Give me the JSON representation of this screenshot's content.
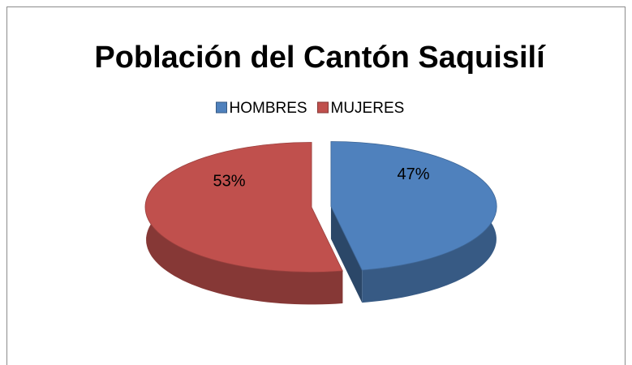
{
  "chart_data": {
    "type": "pie",
    "title": "Población del Cantón Saquisilí",
    "categories": [
      "HOMBRES",
      "MUJERES"
    ],
    "values": [
      47,
      53
    ],
    "value_labels": [
      "47%",
      "53%"
    ],
    "colors": [
      "#4f81bd",
      "#c0504d"
    ],
    "legend": "top"
  }
}
